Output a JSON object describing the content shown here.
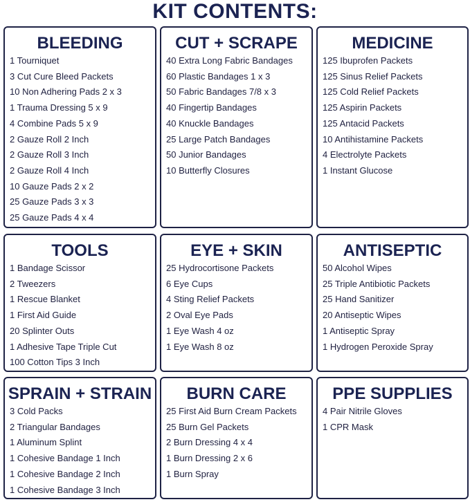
{
  "title": "KIT CONTENTS:",
  "colors": {
    "heading": "#1b2352",
    "border": "#1e2245",
    "text": "#1f2040"
  },
  "sections": [
    {
      "heading": "BLEEDING",
      "items": [
        "1 Tourniquet",
        "3 Cut Cure Bleed Packets",
        "10 Non Adhering Pads 2 x 3",
        "1 Trauma Dressing 5 x 9",
        "4 Combine Pads 5 x 9",
        "2 Gauze Roll 2 Inch",
        "2 Gauze Roll 3 Inch",
        "2 Gauze Roll 4 Inch",
        "10 Gauze Pads 2 x 2",
        "25 Gauze Pads 3 x 3",
        "25 Gauze Pads 4 x 4"
      ]
    },
    {
      "heading": "CUT + SCRAPE",
      "items": [
        "40 Extra Long Fabric Bandages",
        "60 Plastic Bandages 1 x 3",
        "50 Fabric Bandages 7/8 x 3",
        "40 Fingertip Bandages",
        "40 Knuckle Bandages",
        "25 Large Patch Bandages",
        "50 Junior Bandages",
        "10 Butterfly Closures"
      ]
    },
    {
      "heading": "MEDICINE",
      "items": [
        "125 Ibuprofen Packets",
        "125 Sinus Relief Packets",
        "125 Cold Relief Packets",
        "125 Aspirin Packets",
        "125 Antacid Packets",
        "10 Antihistamine Packets",
        "4 Electrolyte Packets",
        "1 Instant Glucose"
      ]
    },
    {
      "heading": "TOOLS",
      "items": [
        "1 Bandage Scissor",
        "2 Tweezers",
        "1 Rescue Blanket",
        "1 First Aid Guide",
        "20 Splinter Outs",
        "1 Adhesive Tape Triple Cut",
        "100 Cotton Tips 3 Inch"
      ]
    },
    {
      "heading": "EYE + SKIN",
      "items": [
        "25 Hydrocortisone Packets",
        "6 Eye Cups",
        "4 Sting Relief Packets",
        "2 Oval Eye Pads",
        "1 Eye Wash 4 oz",
        "1 Eye Wash 8 oz"
      ]
    },
    {
      "heading": "ANTISEPTIC",
      "items": [
        "50 Alcohol Wipes",
        "25 Triple Antibiotic Packets",
        "25 Hand Sanitizer",
        "20 Antiseptic Wipes",
        "1 Antiseptic Spray",
        "1 Hydrogen Peroxide Spray"
      ]
    },
    {
      "heading": "SPRAIN + STRAIN",
      "items": [
        "3 Cold Packs",
        "2 Triangular Bandages",
        "1 Aluminum Splint",
        "1 Cohesive Bandage 1 Inch",
        "1 Cohesive Bandage 2 Inch",
        "1 Cohesive Bandage 3 Inch"
      ]
    },
    {
      "heading": "BURN CARE",
      "items": [
        "25 First Aid Burn Cream Packets",
        "25 Burn Gel Packets",
        "2 Burn Dressing 4 x 4",
        "1 Burn Dressing 2 x 6",
        "1 Burn Spray"
      ]
    },
    {
      "heading": "PPE SUPPLIES",
      "items": [
        "4 Pair Nitrile Gloves",
        "1 CPR Mask"
      ]
    }
  ]
}
